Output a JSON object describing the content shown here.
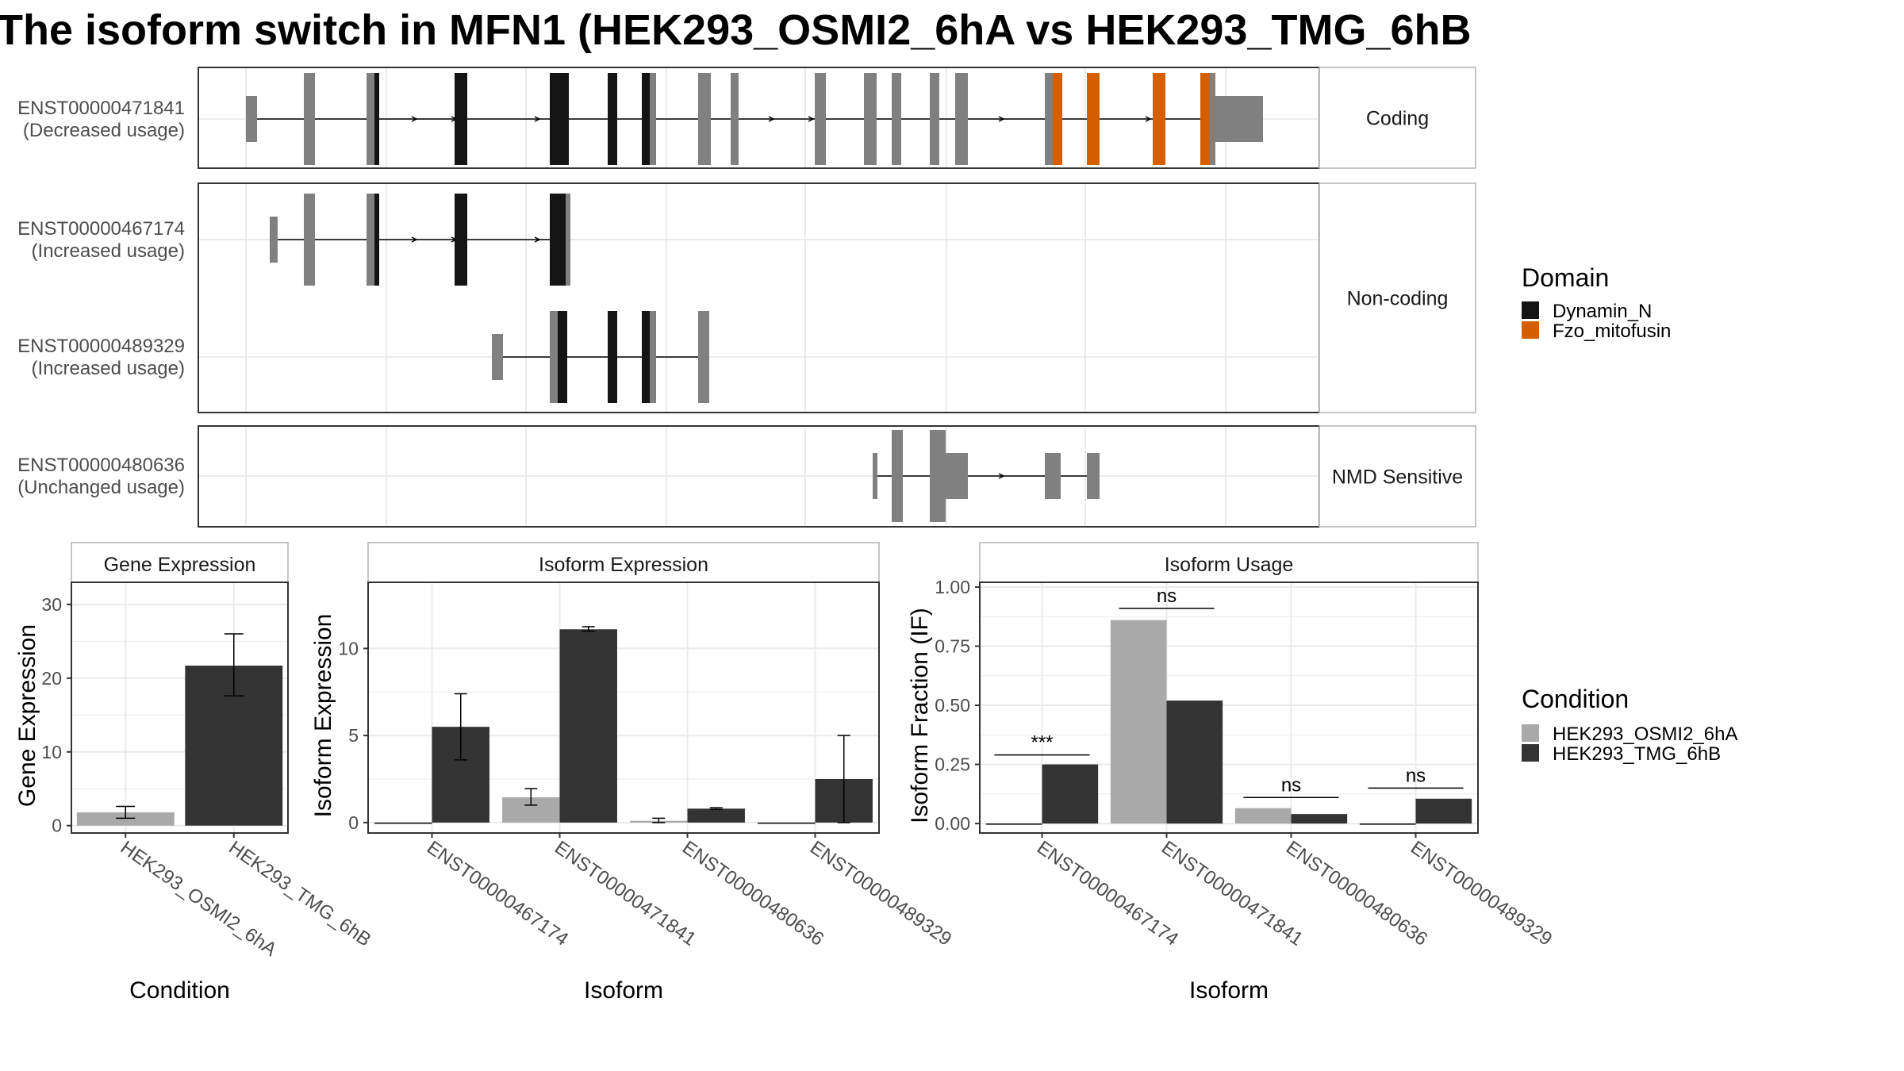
{
  "title": "The isoform switch in MFN1 (HEK293_OSMI2_6hA vs HEK293_TMG_6hB",
  "colors": {
    "exon_gray": "#808080",
    "dynamin": "#141414",
    "fzo": "#D55E00",
    "cond_A": "#A9A9A9",
    "cond_B": "#333333",
    "panel_border": "#333333",
    "strip_border": "#B3B3B3",
    "grid": "#EBEBEB"
  },
  "transcript_panels": [
    {
      "facet": "Coding",
      "transcripts": [
        {
          "id": "ENST00000471841",
          "usage": "(Decreased usage)"
        }
      ]
    },
    {
      "facet": "Non-coding",
      "transcripts": [
        {
          "id": "ENST00000467174",
          "usage": "(Increased usage)"
        },
        {
          "id": "ENST00000489329",
          "usage": "(Increased usage)"
        }
      ]
    },
    {
      "facet": "NMD Sensitive",
      "transcripts": [
        {
          "id": "ENST00000480636",
          "usage": "(Unchanged usage)"
        }
      ]
    }
  ],
  "domain_legend": {
    "title": "Domain",
    "items": [
      {
        "label": "Dynamin_N",
        "color": "#141414"
      },
      {
        "label": "Fzo_mitofusin",
        "color": "#D55E00"
      }
    ]
  },
  "condition_legend": {
    "title": "Condition",
    "items": [
      {
        "label": "HEK293_OSMI2_6hA",
        "color": "#A9A9A9"
      },
      {
        "label": "HEK293_TMG_6hB",
        "color": "#333333"
      }
    ]
  },
  "chart_data": [
    {
      "type": "bar",
      "title": "Gene Expression",
      "xlabel": "Condition",
      "ylabel": "Gene Expression",
      "ylim": [
        -1,
        33
      ],
      "yticks": [
        0,
        10,
        20,
        30
      ],
      "categories": [
        "HEK293_OSMI2_6hA",
        "HEK293_TMG_6hB"
      ],
      "values": [
        1.8,
        21.7
      ],
      "error": [
        [
          1.0,
          2.6
        ],
        [
          17.6,
          26.0
        ]
      ]
    },
    {
      "type": "bar",
      "title": "Isoform Expression",
      "xlabel": "Isoform",
      "ylabel": "Isoform Expression",
      "ylim": [
        -0.6,
        13.8
      ],
      "yticks": [
        0,
        5,
        10
      ],
      "categories": [
        "ENST00000467174",
        "ENST00000471841",
        "ENST00000480636",
        "ENST00000489329"
      ],
      "series": [
        {
          "name": "HEK293_OSMI2_6hA",
          "values": [
            0.0,
            1.45,
            0.1,
            0.0
          ],
          "error": [
            [
              0.0,
              0.0
            ],
            [
              1.0,
              1.95
            ],
            [
              0.0,
              0.25
            ],
            [
              0.0,
              0.0
            ]
          ]
        },
        {
          "name": "HEK293_TMG_6hB",
          "values": [
            5.5,
            11.1,
            0.8,
            2.5
          ],
          "error": [
            [
              3.6,
              7.4
            ],
            [
              11.0,
              11.25
            ],
            [
              0.75,
              0.85
            ],
            [
              0.0,
              5.0
            ]
          ]
        }
      ]
    },
    {
      "type": "bar",
      "title": "Isoform Usage",
      "xlabel": "Isoform",
      "ylabel": "Isoform Fraction (IF)",
      "ylim": [
        -0.04,
        1.02
      ],
      "yticks": [
        "0.00",
        "0.25",
        "0.50",
        "0.75",
        "1.00"
      ],
      "categories": [
        "ENST00000467174",
        "ENST00000471841",
        "ENST00000480636",
        "ENST00000489329"
      ],
      "series": [
        {
          "name": "HEK293_OSMI2_6hA",
          "values": [
            0.0,
            0.86,
            0.065,
            0.0
          ]
        },
        {
          "name": "HEK293_TMG_6hB",
          "values": [
            0.25,
            0.52,
            0.04,
            0.105
          ]
        }
      ],
      "significance": [
        "***",
        "ns",
        "ns",
        "ns"
      ],
      "significance_y": [
        0.29,
        0.91,
        0.11,
        0.15
      ]
    }
  ]
}
